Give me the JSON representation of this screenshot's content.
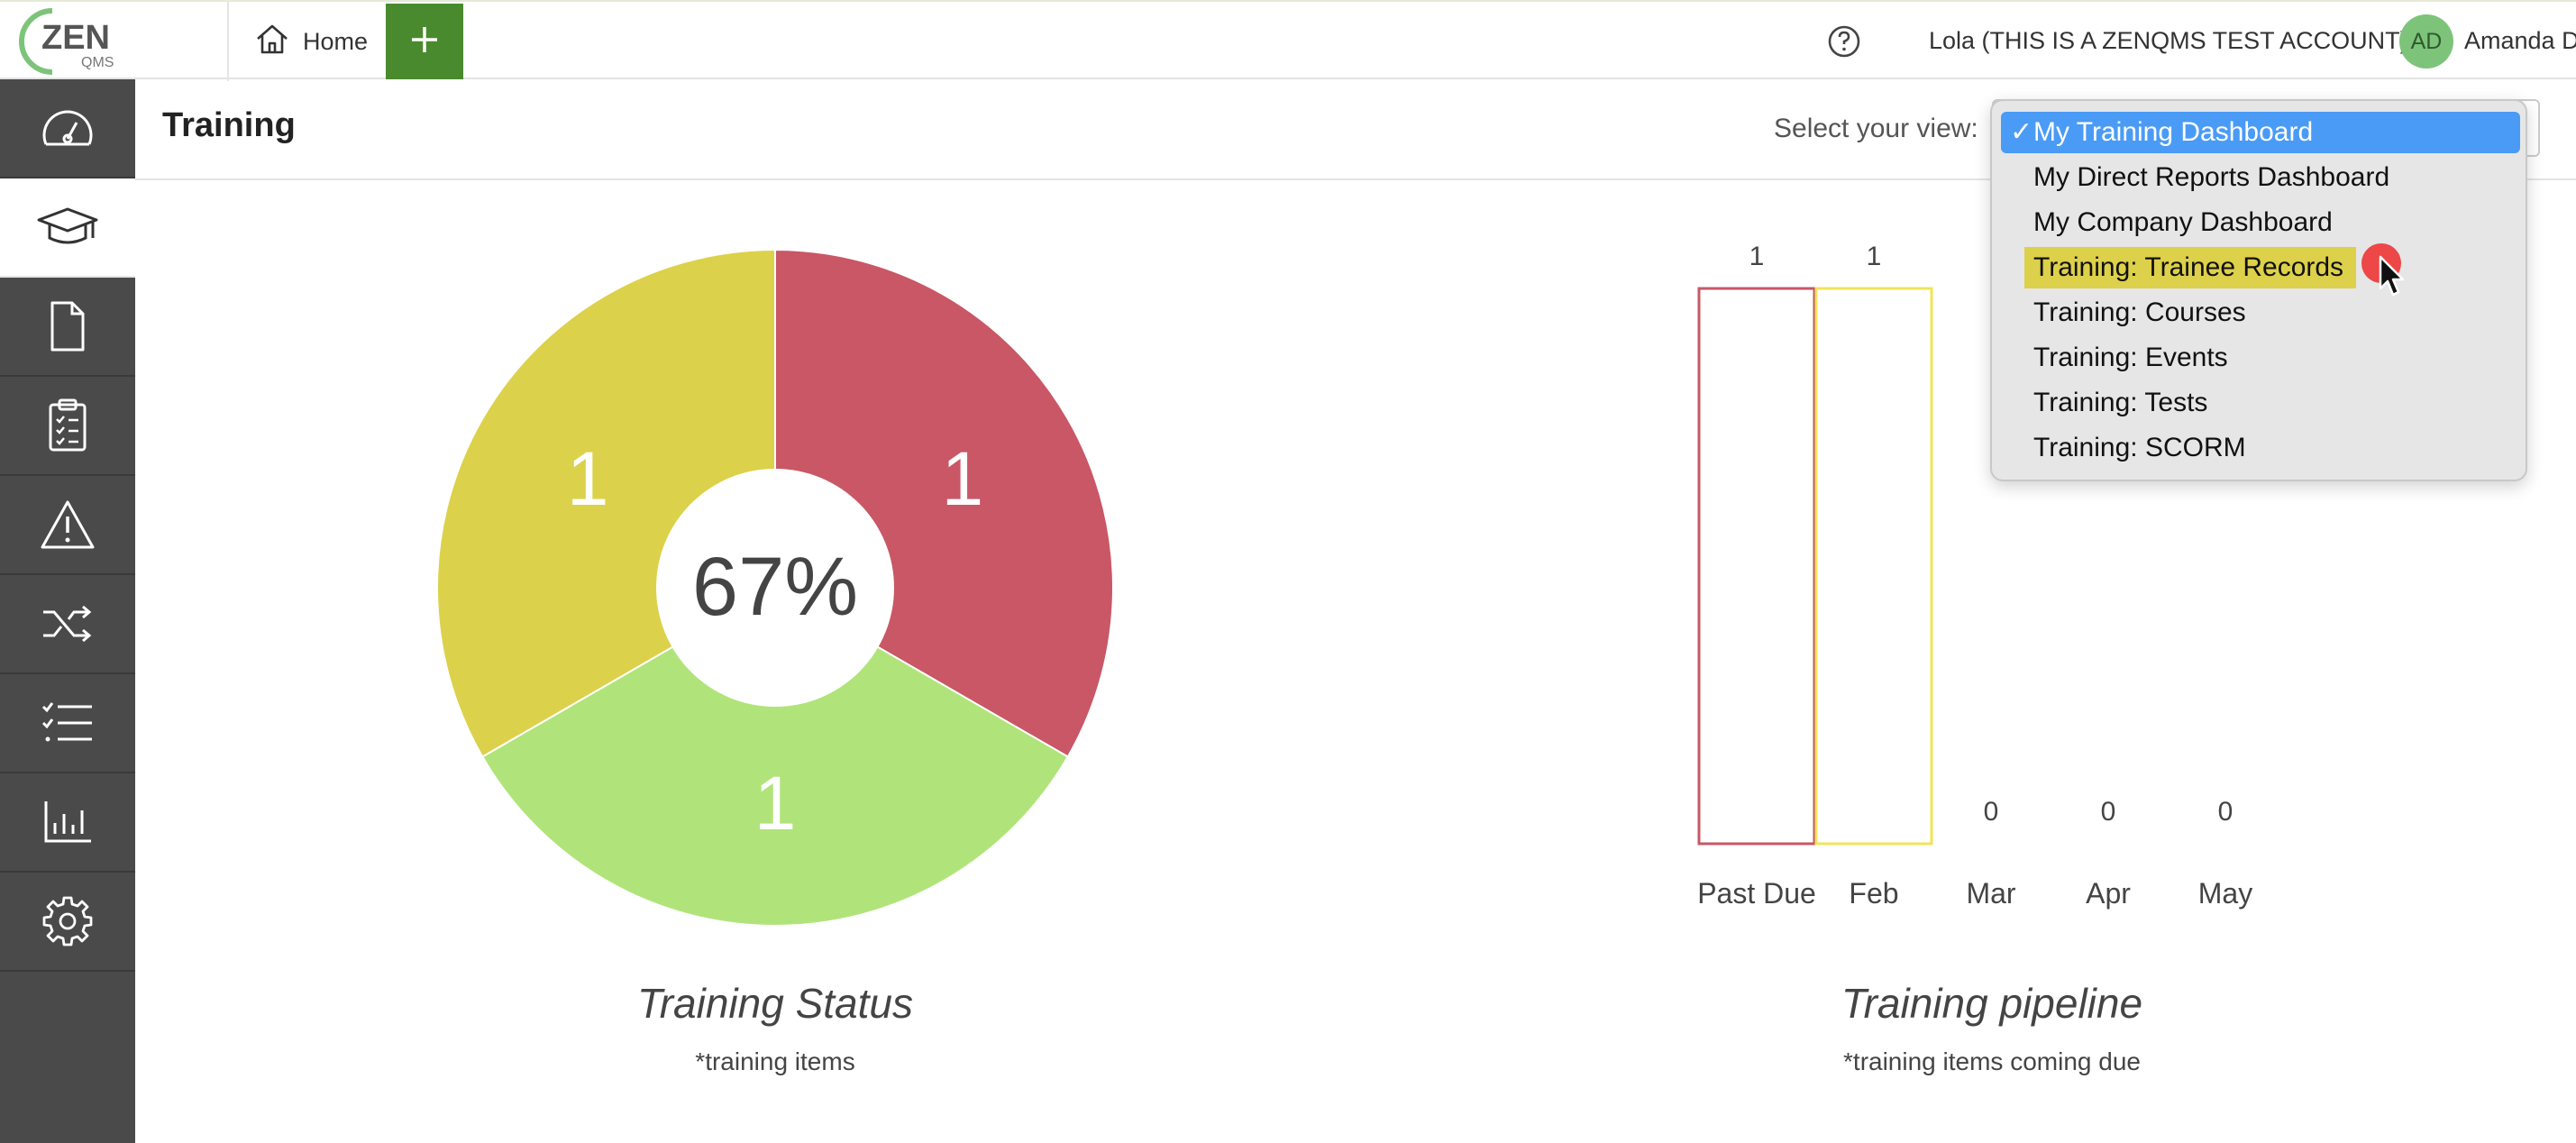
{
  "header": {
    "logo_text": "ZEN",
    "logo_sub": "QMS",
    "home_label": "Home",
    "account_label": "Lola (THIS IS A ZENQMS TEST ACCOUNT)",
    "avatar_initials": "AD",
    "user_name": "Amanda D"
  },
  "sidebar": {
    "items": [
      {
        "name": "dashboard",
        "icon": "speedometer-icon"
      },
      {
        "name": "training",
        "icon": "graduation-cap-icon",
        "active": true
      },
      {
        "name": "documents",
        "icon": "document-icon"
      },
      {
        "name": "audits",
        "icon": "clipboard-checklist-icon"
      },
      {
        "name": "issues",
        "icon": "warning-triangle-icon"
      },
      {
        "name": "change-control",
        "icon": "shuffle-icon"
      },
      {
        "name": "tasks",
        "icon": "checklist-icon"
      },
      {
        "name": "reports",
        "icon": "bar-chart-icon"
      },
      {
        "name": "settings",
        "icon": "gear-icon"
      }
    ]
  },
  "page": {
    "title": "Training",
    "view_label": "Select your view:"
  },
  "view_menu": {
    "selected": "My Training Dashboard",
    "highlighted": "Training: Trainee Records",
    "options": [
      "My Training Dashboard",
      "My Direct Reports Dashboard",
      "My Company Dashboard",
      "Training: Trainee Records",
      "Training: Courses",
      "Training: Events",
      "Training: Tests",
      "Training: SCORM"
    ]
  },
  "chart_data": [
    {
      "type": "pie",
      "title": "Training Status",
      "subtitle": "*training items",
      "center_label": "67%",
      "slices": [
        {
          "value": 1,
          "color": "#c95766",
          "label": "1"
        },
        {
          "value": 1,
          "color": "#b0e47a",
          "label": "1"
        },
        {
          "value": 1,
          "color": "#dcd14a",
          "label": "1"
        }
      ]
    },
    {
      "type": "bar",
      "title": "Training pipeline",
      "subtitle": "*training items coming due",
      "categories": [
        "Past Due",
        "Feb",
        "Mar",
        "Apr",
        "May"
      ],
      "values": [
        1,
        1,
        0,
        0,
        0
      ],
      "colors": [
        "#c95766",
        "#f0e45a",
        "#cccccc",
        "#cccccc",
        "#cccccc"
      ]
    }
  ]
}
